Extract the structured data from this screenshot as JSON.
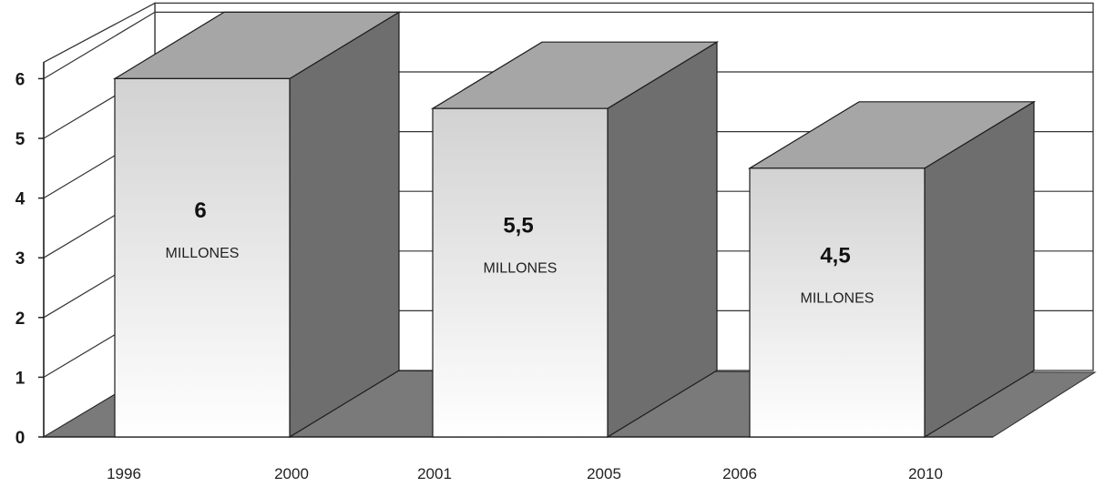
{
  "chart_data": {
    "type": "bar",
    "categories": [
      "1996 - 2000",
      "2001 - 2005",
      "2006 - 2010"
    ],
    "values": [
      6,
      5.5,
      4.5
    ],
    "value_labels": [
      "6",
      "5,5",
      "4,5"
    ],
    "unit_label": "MILLONES",
    "x_tick_labels": [
      "1996",
      "2000",
      "2001",
      "2005",
      "2006",
      "2010"
    ],
    "y_ticks": [
      "0",
      "1",
      "2",
      "3",
      "4",
      "5",
      "6"
    ],
    "ylim": [
      0,
      6
    ],
    "title": "",
    "xlabel": "",
    "ylabel": "",
    "grid": true,
    "legend": "none",
    "style": "3d-column",
    "colors": {
      "bar_front_top": "#d2d2d2",
      "bar_front_bottom": "#ffffff",
      "bar_side": "#6e6e6e",
      "bar_top": "#a6a6a6",
      "floor": "#7a7a7a",
      "gridline": "#333333"
    }
  }
}
